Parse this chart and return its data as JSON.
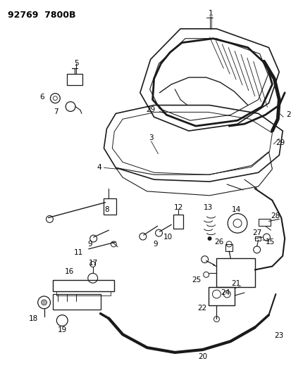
{
  "title_code": "92769  7800B",
  "bg_color": "#ffffff",
  "line_color": "#1a1a1a",
  "fig_width": 4.14,
  "fig_height": 5.33,
  "dpi": 100
}
